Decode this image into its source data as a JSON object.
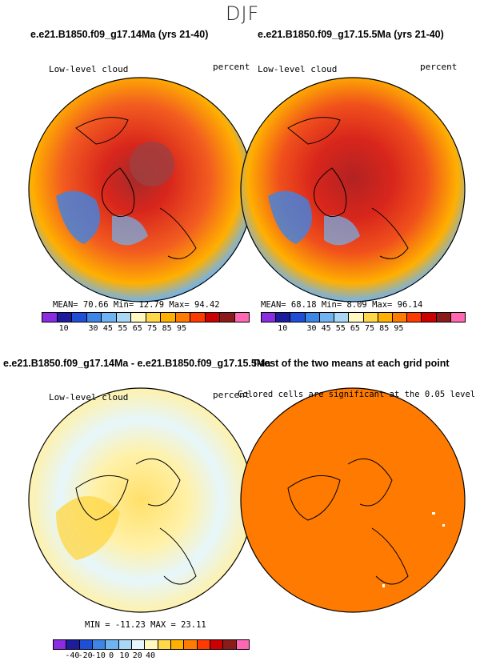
{
  "figure": {
    "title": "DJF",
    "panels": [
      {
        "title": "e.e21.B1850.f09_g17.14Ma (yrs 21-40)",
        "left_label": "Low-level cloud",
        "right_label": "percent",
        "stats": "MEAN=   70.66   Min=   12.79   Max=   94.42"
      },
      {
        "title": "e.e21.B1850.f09_g17.15.5Ma (yrs 21-40)",
        "left_label": "Low-level cloud",
        "right_label": "percent",
        "stats": "MEAN=   68.18   Min=    8.09   Max=   96.14"
      },
      {
        "title": "e.e21.B1850.f09_g17.14Ma - e.e21.B1850.f09_g17.15.5Ma",
        "left_label": "Low-level cloud",
        "right_label": "percent",
        "stats": "MIN = -11.23 MAX =  23.11"
      },
      {
        "title": "T-test of the two means at each grid point",
        "right_label": "Colored cells are significant at the 0.05 level"
      }
    ],
    "colorbar_top": {
      "colors": [
        "#8b2be2",
        "#1c1c9c",
        "#1f4fd6",
        "#3d85e6",
        "#6fb3f0",
        "#a8d8f5",
        "#fff8c0",
        "#ffd84a",
        "#ffb000",
        "#ff7a00",
        "#ff3a00",
        "#cc0000",
        "#8b1a1a",
        "#ff66b3"
      ],
      "labels": [
        "10",
        "30",
        "45",
        "55",
        "65",
        "75",
        "85",
        "95"
      ]
    },
    "colorbar_bottom": {
      "colors": [
        "#8b2be2",
        "#1c1c9c",
        "#1f4fd6",
        "#3d85e6",
        "#6fb3f0",
        "#a8d8f5",
        "#e6f6fb",
        "#fff8c0",
        "#ffd84a",
        "#ffb000",
        "#ff7a00",
        "#ff3a00",
        "#cc0000",
        "#8b1a1a",
        "#ff66b3"
      ],
      "labels": [
        "-40",
        "-20",
        "-10",
        "0",
        "10",
        "20",
        "40"
      ]
    },
    "tick_positions": {
      "top": [
        2,
        4,
        5,
        6,
        7,
        8,
        9,
        10
      ],
      "bottom": [
        2,
        3,
        4,
        5,
        6,
        7,
        8
      ]
    },
    "map_fills": {
      "top_left": "#e8452a",
      "top_right": "#e23a22",
      "bottom_left": "#fff1a8",
      "bottom_right": "#ff7a00"
    }
  }
}
